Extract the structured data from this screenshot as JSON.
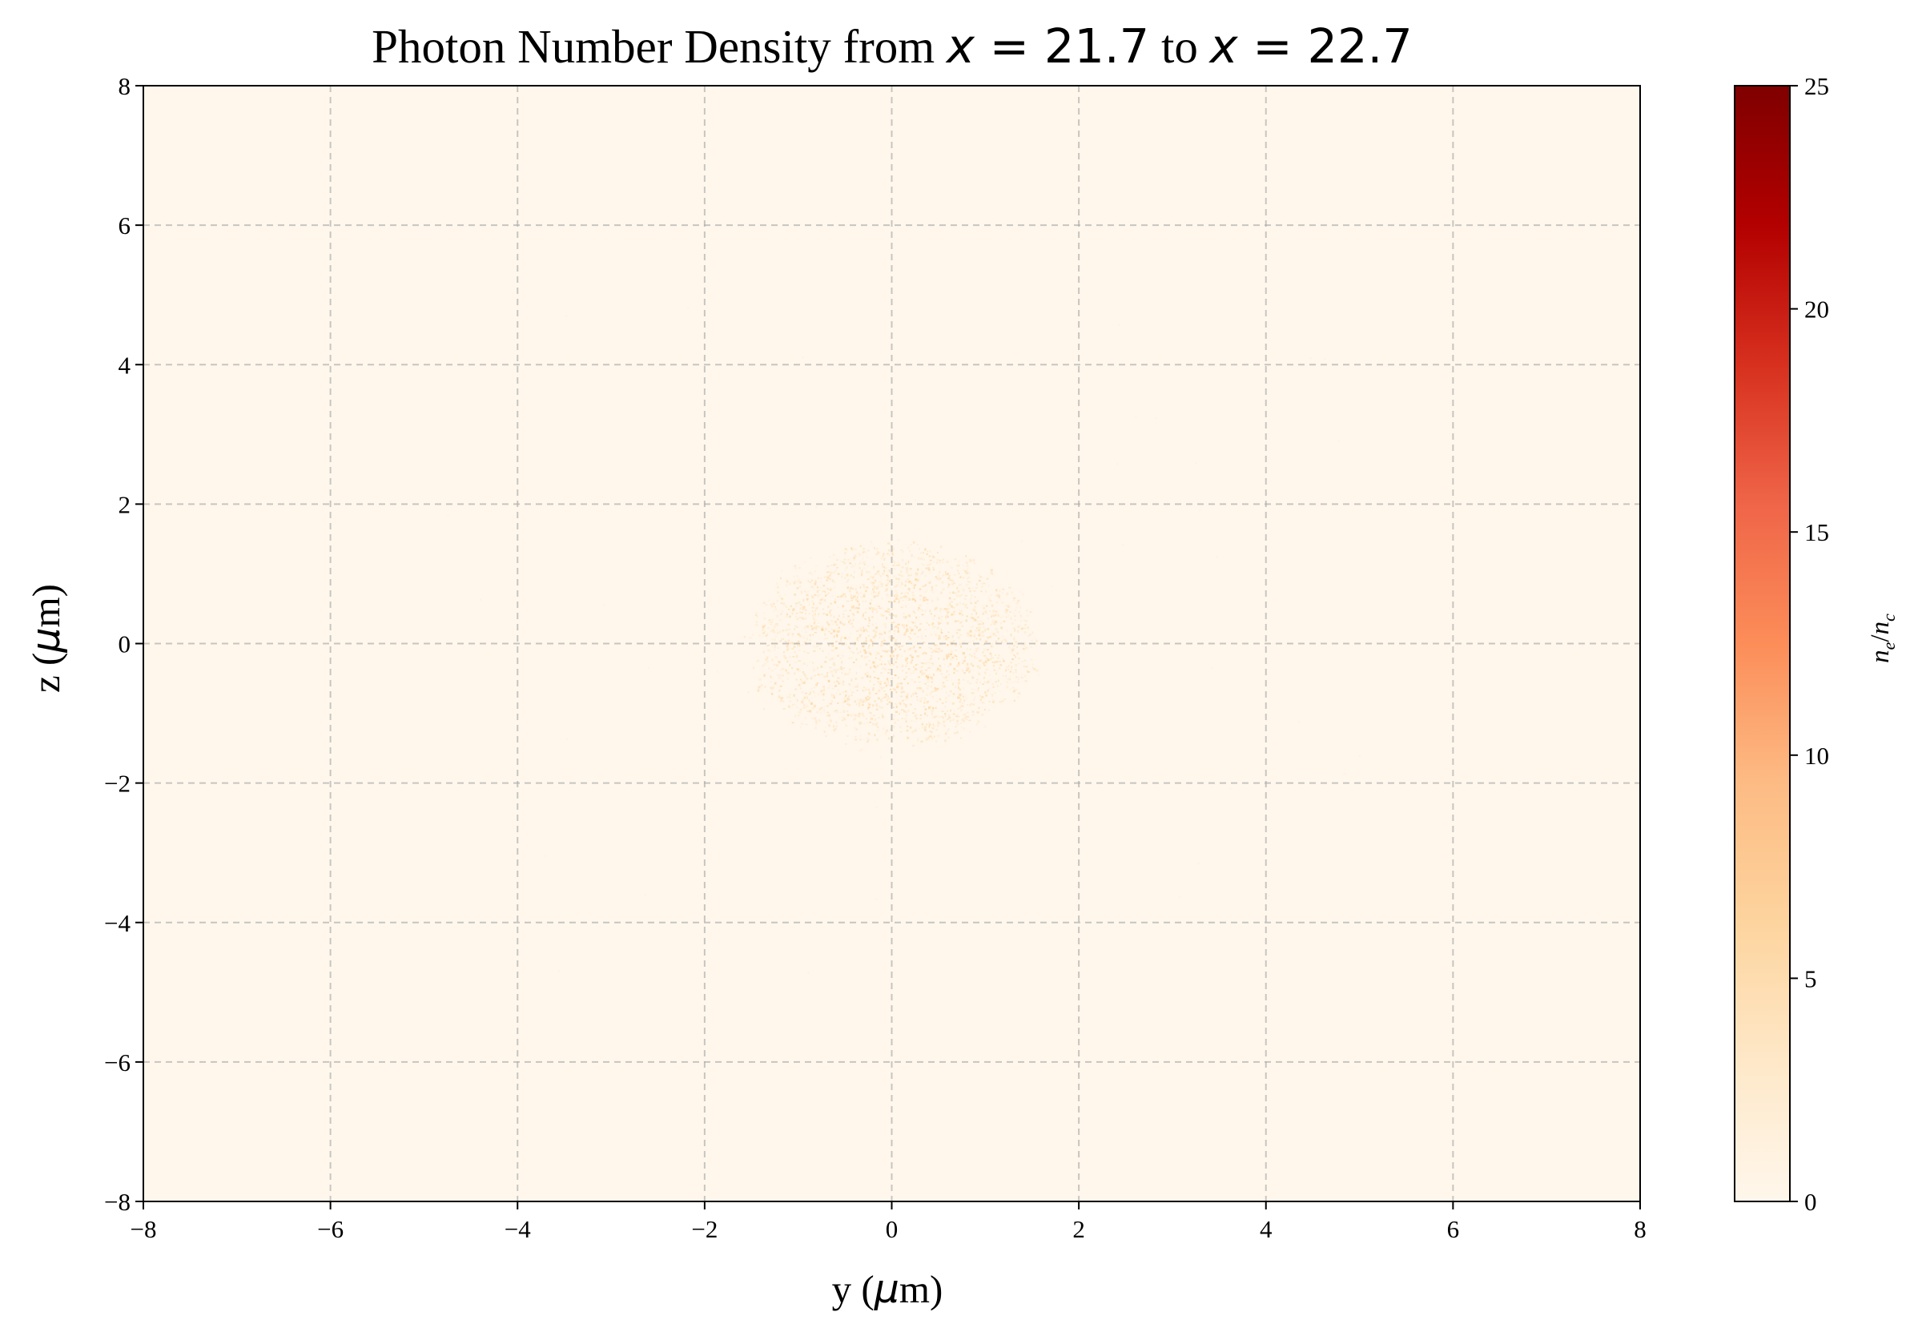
{
  "chart_data": {
    "type": "heatmap",
    "title": "Photon Number Density from x = 21.7 to x = 22.7",
    "title_parts": {
      "prefix": "Photon Number Density from ",
      "lhs1": "x",
      "rhs1": " = 21.7",
      "middle": " to ",
      "lhs2": "x",
      "rhs2": " = 22.7"
    },
    "xlabel": "y (μm)",
    "ylabel": "z (μm)",
    "xlabel_parts": {
      "pre": "y (",
      "mu": "μ",
      "post": "m)"
    },
    "ylabel_parts": {
      "pre": "z (",
      "mu": "μ",
      "post": "m)"
    },
    "xlim": [
      -8,
      8
    ],
    "ylim": [
      -8,
      8
    ],
    "xticks": [
      -8,
      -6,
      -4,
      -2,
      0,
      2,
      4,
      6,
      8
    ],
    "yticks": [
      -8,
      -6,
      -4,
      -2,
      0,
      2,
      4,
      6,
      8
    ],
    "xtick_labels": [
      "−8",
      "−6",
      "−4",
      "−2",
      "0",
      "2",
      "4",
      "6",
      "8"
    ],
    "ytick_labels": [
      "−8",
      "−6",
      "−4",
      "−2",
      "0",
      "2",
      "4",
      "6",
      "8"
    ],
    "grid": true,
    "colormap": "OrRd",
    "colormap_stops": [
      "#fff7ec",
      "#fee8c8",
      "#fdd49e",
      "#fdbb84",
      "#fc8d59",
      "#ef6548",
      "#d7301f",
      "#b30000",
      "#7f0000"
    ],
    "background_color": "#fff7ec",
    "colorbar": {
      "label": "n_e/n_c",
      "label_parts": {
        "a": "n",
        "a_sub": "e",
        "slash": "/",
        "b": "n",
        "b_sub": "c"
      },
      "range": [
        0,
        25
      ],
      "ticks": [
        0,
        5,
        10,
        15,
        20,
        25
      ],
      "tick_labels": [
        "0",
        "5",
        "10",
        "15",
        "20",
        "25"
      ]
    },
    "feature": {
      "description_value": "faint diffuse speckled photon cloud",
      "center": [
        0,
        0
      ],
      "radius_y": 1.5,
      "radius_z": 1.4,
      "peak_value": 2.5
    }
  }
}
